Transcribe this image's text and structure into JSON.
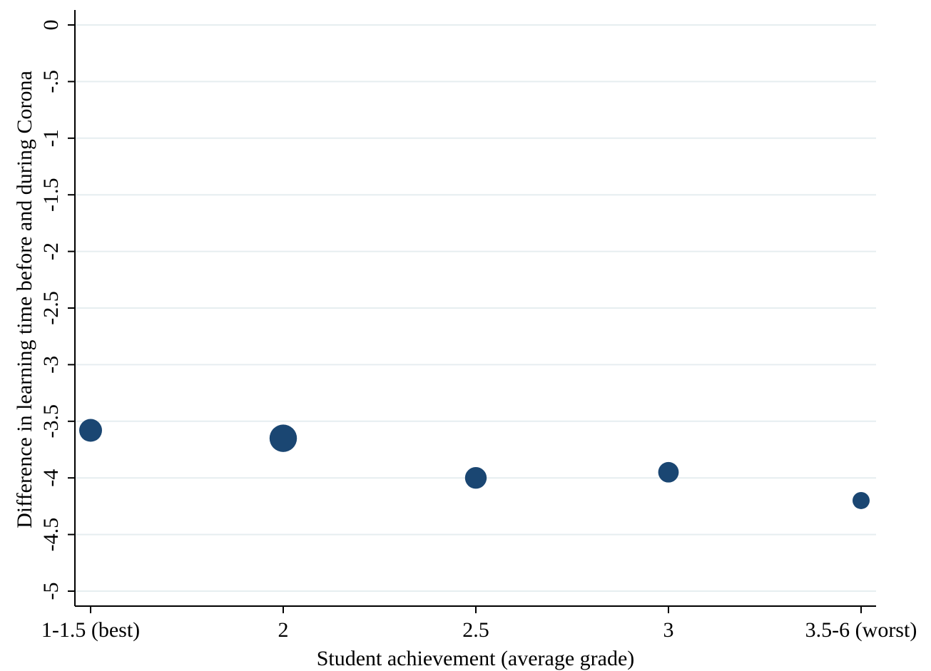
{
  "chart_data": {
    "type": "scatter",
    "title": "",
    "xlabel": "Student achievement (average grade)",
    "ylabel": "Difference in learning time before and during Corona",
    "categories": [
      "1-1.5 (best)",
      "2",
      "2.5",
      "3",
      "3.5-6 (worst)"
    ],
    "series": [
      {
        "values": [
          -3.58,
          -3.65,
          -4.0,
          -3.95,
          -4.2
        ],
        "relative_marker_size": [
          1.0,
          1.2,
          0.95,
          0.9,
          0.75
        ]
      }
    ],
    "ylim": [
      -5,
      0
    ],
    "yticks": [
      "0",
      "-.5",
      "-1",
      "-1.5",
      "-2",
      "-2.5",
      "-3",
      "-3.5",
      "-4",
      "-4.5",
      "-5"
    ],
    "ytick_values": [
      0,
      -0.5,
      -1,
      -1.5,
      -2,
      -2.5,
      -3,
      -3.5,
      -4,
      -4.5,
      -5
    ],
    "grid": true,
    "legend": "none",
    "colors": {
      "marker": "#1a4672",
      "grid": "#e6eef0",
      "axis": "#000000"
    }
  }
}
